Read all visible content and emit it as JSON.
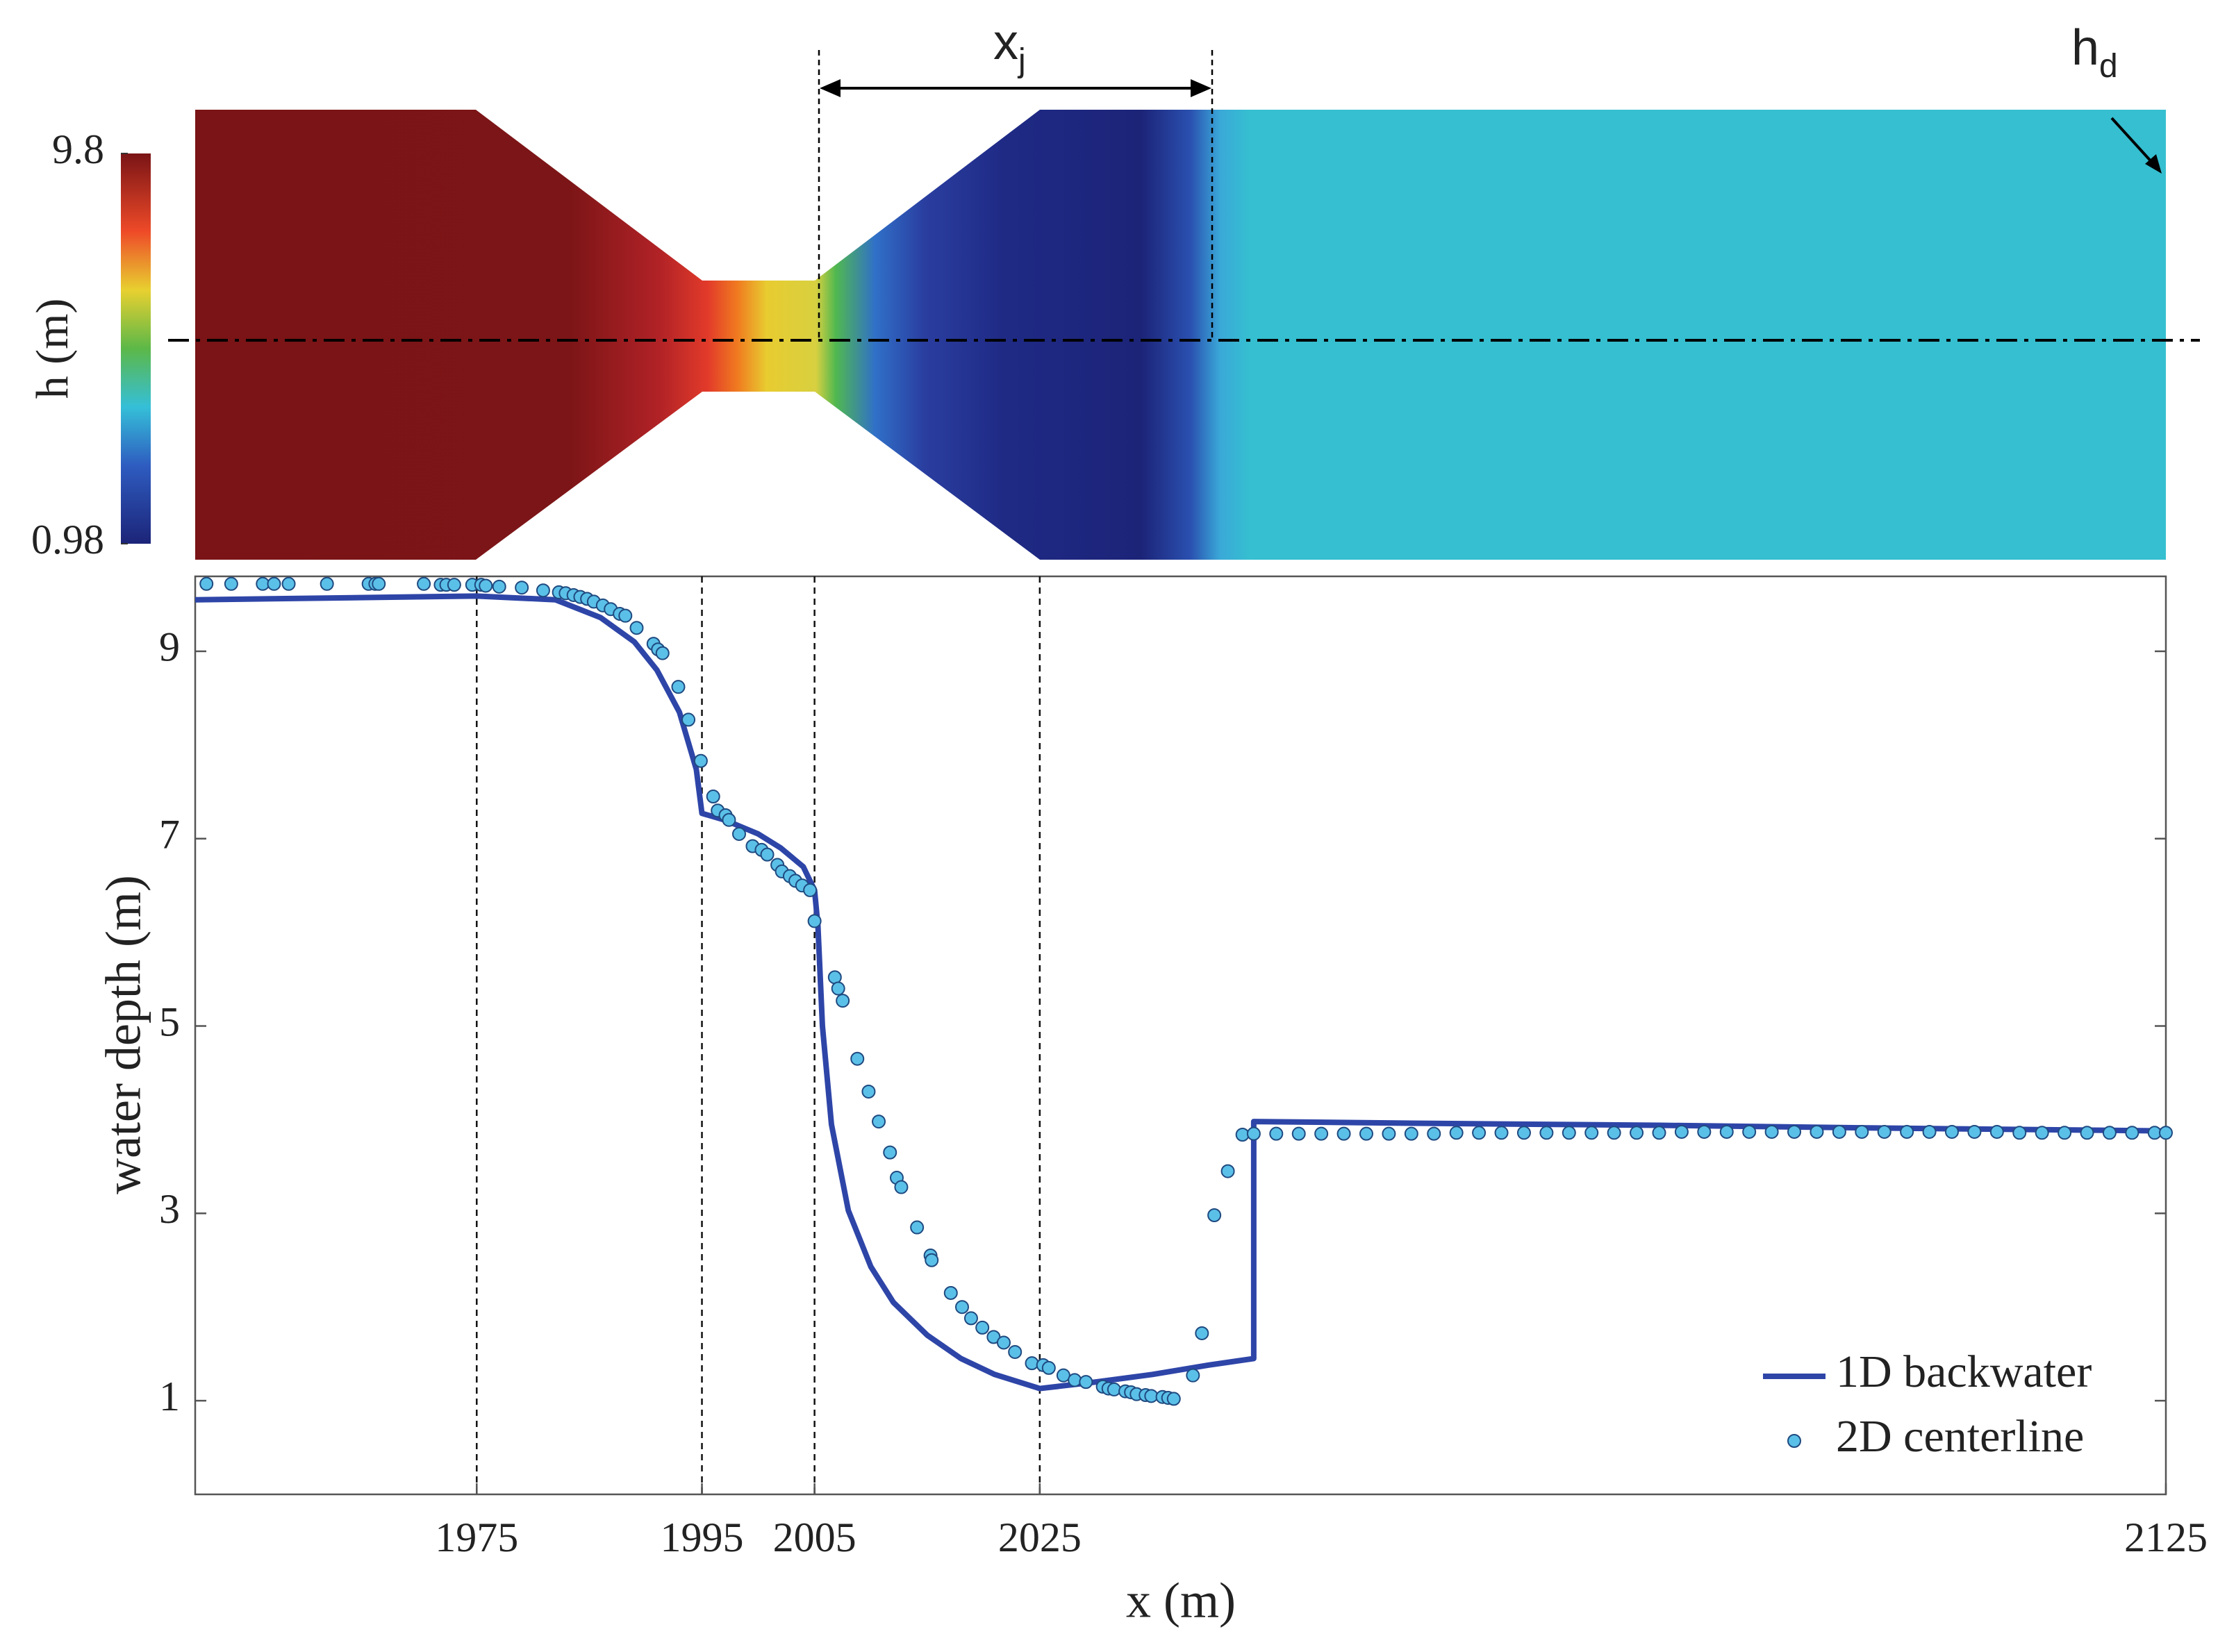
{
  "chart_data": [
    {
      "type": "contour",
      "colorbar": {
        "label": "h (m)",
        "clim": [
          0.98,
          9.8
        ],
        "cticks": [
          0.98,
          9.8
        ]
      },
      "annotations": [
        {
          "text": "x",
          "subscript": "j"
        },
        {
          "text": "h",
          "subscript": "d"
        }
      ]
    },
    {
      "type": "line",
      "xlabel": "x (m)",
      "ylabel": "water depth (m)",
      "xlim": [
        1950,
        2125
      ],
      "ylim": [
        0,
        9.8
      ],
      "xticks": [
        1975,
        1995,
        2005,
        2025,
        2125
      ],
      "yticks": [
        1,
        3,
        5,
        7,
        9
      ],
      "legend": "lower right",
      "series": [
        {
          "name": "1D backwater",
          "mode": "line",
          "color": "#2e45a8",
          "x": [
            1950,
            1975,
            1982,
            1986,
            1989,
            1991,
            1993,
            1994.5,
            1995,
            1997,
            2000,
            2002,
            2004,
            2005,
            2005.3,
            2005.7,
            2006.5,
            2008,
            2010,
            2012,
            2015,
            2018,
            2021,
            2025,
            2030,
            2035,
            2040,
            2044,
            2044,
            2060,
            2080,
            2100,
            2125
          ],
          "values": [
            9.55,
            9.59,
            9.55,
            9.36,
            9.1,
            8.8,
            8.35,
            7.74,
            7.27,
            7.2,
            7.05,
            6.9,
            6.7,
            6.45,
            6.07,
            5.0,
            3.95,
            3.03,
            2.43,
            2.05,
            1.7,
            1.45,
            1.28,
            1.13,
            1.2,
            1.28,
            1.38,
            1.45,
            3.98,
            3.96,
            3.94,
            3.91,
            3.88
          ]
        },
        {
          "name": "2D centerline",
          "mode": "markers",
          "color": "#5bc0e8",
          "x": [
            1951,
            1953.2,
            1956,
            1957,
            1958.3,
            1961.7,
            1965.4,
            1966,
            1966.3,
            1970.3,
            1971.8,
            1972.3,
            1973,
            1974.6,
            1975.4,
            1975.8,
            1977,
            1979,
            1980.9,
            1982.3,
            1982.9,
            1983.6,
            1984.2,
            1984.8,
            1985.4,
            1986.2,
            1986.9,
            1987.7,
            1988.2,
            1989.2,
            1990.7,
            1991.1,
            1991.5,
            1992.9,
            1993.8,
            1994.9,
            1996,
            1996.4,
            1997.1,
            1997.4,
            1998.3,
            1999.5,
            2000.3,
            2000.8,
            2001.7,
            2002.1,
            2002.8,
            2003.3,
            2003.9,
            2004.6,
            2005,
            2006.8,
            2007.1,
            2007.5,
            2008.8,
            2009.8,
            2010.7,
            2011.7,
            2012.3,
            2012.7,
            2014.1,
            2015.3,
            2015.4,
            2017.1,
            2018.1,
            2018.9,
            2019.9,
            2020.9,
            2021.8,
            2022.8,
            2024.3,
            2025.3,
            2025.8,
            2027.1,
            2028.1,
            2029.1,
            2030.6,
            2031.1,
            2031.6,
            2032.6,
            2033.1,
            2033.6,
            2034.4,
            2034.9,
            2035.9,
            2036.4,
            2036.9,
            2038.6,
            2039.4,
            2040.5,
            2041.7,
            2043,
            2044,
            2046,
            2048,
            2050,
            2052,
            2054,
            2056,
            2058,
            2060,
            2062,
            2064,
            2066,
            2068,
            2070,
            2072,
            2074,
            2076,
            2078,
            2080,
            2082,
            2084,
            2086,
            2088,
            2090,
            2092,
            2094,
            2096,
            2098,
            2100,
            2102,
            2104,
            2106,
            2108,
            2110,
            2112,
            2114,
            2116,
            2118,
            2120,
            2122,
            2124,
            2125
          ],
          "values": [
            9.72,
            9.72,
            9.72,
            9.72,
            9.72,
            9.72,
            9.72,
            9.72,
            9.72,
            9.72,
            9.71,
            9.71,
            9.71,
            9.71,
            9.71,
            9.7,
            9.69,
            9.68,
            9.65,
            9.63,
            9.62,
            9.6,
            9.58,
            9.56,
            9.53,
            9.49,
            9.45,
            9.4,
            9.38,
            9.25,
            9.08,
            9.02,
            8.98,
            8.62,
            8.27,
            7.83,
            7.45,
            7.3,
            7.25,
            7.2,
            7.05,
            6.92,
            6.88,
            6.83,
            6.72,
            6.65,
            6.6,
            6.55,
            6.5,
            6.45,
            6.12,
            5.52,
            5.4,
            5.27,
            4.65,
            4.3,
            3.98,
            3.65,
            3.38,
            3.28,
            2.85,
            2.55,
            2.5,
            2.15,
            2.0,
            1.88,
            1.78,
            1.68,
            1.62,
            1.52,
            1.4,
            1.38,
            1.35,
            1.27,
            1.22,
            1.2,
            1.15,
            1.13,
            1.12,
            1.1,
            1.09,
            1.07,
            1.06,
            1.05,
            1.04,
            1.03,
            1.02,
            1.27,
            1.72,
            2.98,
            3.45,
            3.84,
            3.85,
            3.85,
            3.85,
            3.85,
            3.85,
            3.85,
            3.85,
            3.85,
            3.85,
            3.86,
            3.86,
            3.86,
            3.86,
            3.86,
            3.86,
            3.86,
            3.86,
            3.86,
            3.86,
            3.87,
            3.87,
            3.87,
            3.87,
            3.87,
            3.87,
            3.87,
            3.87,
            3.87,
            3.87,
            3.87,
            3.87,
            3.87,
            3.87,
            3.87,
            3.86,
            3.86,
            3.86,
            3.86,
            3.86,
            3.86,
            3.86,
            3.86
          ]
        }
      ]
    }
  ]
}
